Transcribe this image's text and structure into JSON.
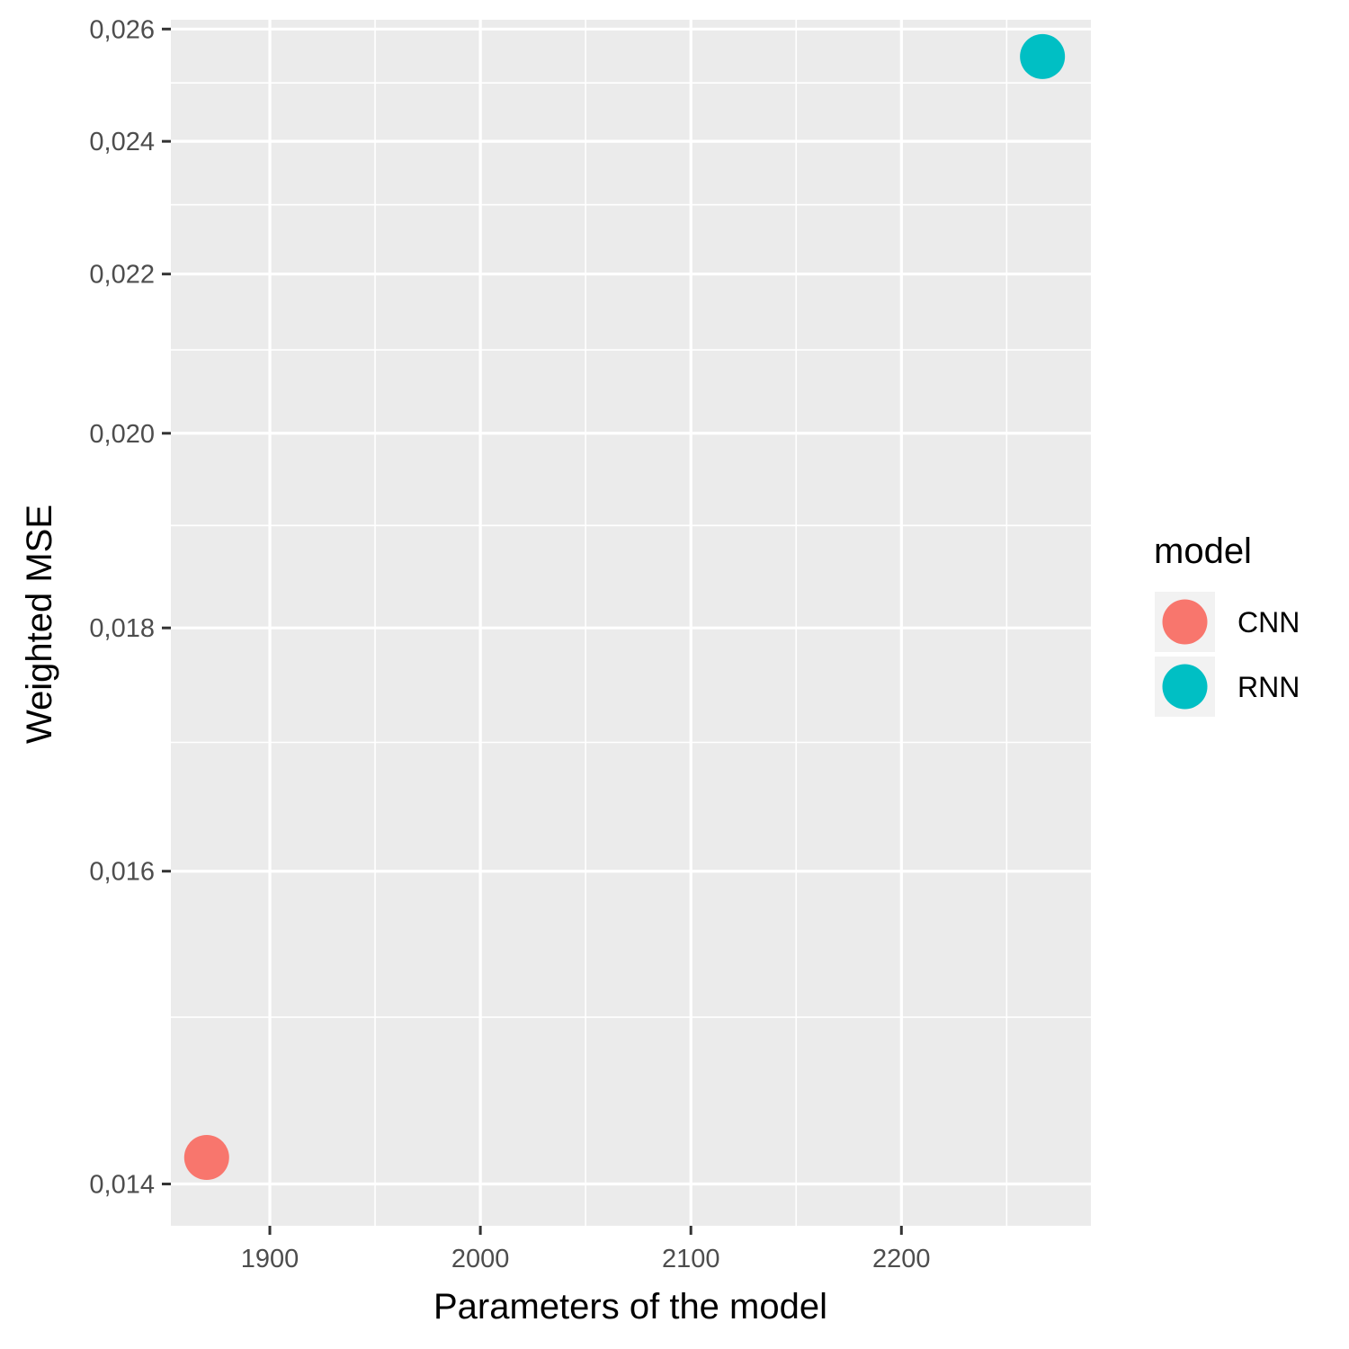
{
  "chart_data": {
    "type": "scatter",
    "xlabel": "Parameters of the model",
    "ylabel": "Weighted MSE",
    "xlim": [
      1853,
      2290
    ],
    "ylim": [
      0.01377,
      0.02618
    ],
    "x_ticks": [
      1900,
      2000,
      2100,
      2200
    ],
    "x_tick_labels": [
      "1900",
      "2000",
      "2100",
      "2200"
    ],
    "y_ticks": [
      0.014,
      0.016,
      0.018,
      0.02,
      0.022,
      0.024,
      0.026
    ],
    "y_tick_labels": [
      "0,014",
      "0,016",
      "0,018",
      "0,020",
      "0,022",
      "0,024",
      "0,026"
    ],
    "y_scale": "reciprocal",
    "grid": true,
    "legend": {
      "title": "model",
      "position": "right"
    },
    "series": [
      {
        "name": "CNN",
        "color": "#F8766D",
        "points": [
          {
            "x": 1870,
            "y": 0.01415
          }
        ]
      },
      {
        "name": "RNN",
        "color": "#00BFC4",
        "points": [
          {
            "x": 2267,
            "y": 0.02548
          }
        ]
      }
    ]
  }
}
